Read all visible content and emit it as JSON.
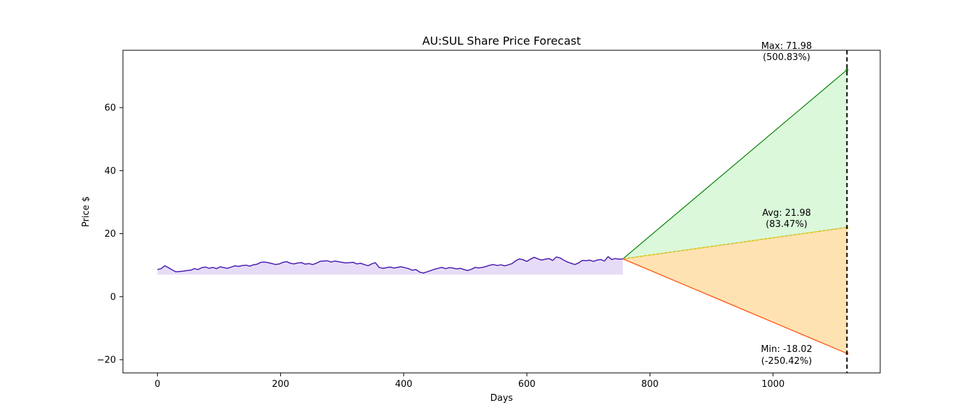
{
  "chart_data": {
    "type": "line",
    "title": "AU:SUL Share Price Forecast",
    "xlabel": "Days",
    "ylabel": "Price $",
    "xlim": [
      -56,
      1174
    ],
    "ylim": [
      -24.2,
      78.2
    ],
    "xticks": [
      0,
      200,
      400,
      600,
      800,
      1000
    ],
    "yticks": [
      -20,
      0,
      20,
      40,
      60
    ],
    "grid": false,
    "history": {
      "baseline": 7.0,
      "x": [
        0,
        6,
        12,
        18,
        24,
        30,
        36,
        42,
        48,
        54,
        60,
        66,
        72,
        78,
        84,
        90,
        96,
        102,
        108,
        114,
        120,
        126,
        132,
        138,
        144,
        150,
        156,
        162,
        168,
        174,
        180,
        186,
        192,
        198,
        204,
        210,
        216,
        222,
        228,
        234,
        240,
        246,
        252,
        258,
        264,
        270,
        276,
        282,
        288,
        294,
        300,
        306,
        312,
        318,
        324,
        330,
        336,
        342,
        348,
        354,
        360,
        366,
        372,
        378,
        384,
        390,
        396,
        402,
        408,
        414,
        420,
        426,
        432,
        438,
        444,
        450,
        456,
        462,
        468,
        474,
        480,
        486,
        492,
        498,
        504,
        510,
        516,
        522,
        528,
        534,
        540,
        546,
        552,
        558,
        564,
        570,
        576,
        582,
        588,
        594,
        600,
        606,
        612,
        618,
        624,
        630,
        636,
        642,
        648,
        654,
        660,
        666,
        672,
        678,
        684,
        690,
        696,
        702,
        708,
        714,
        720,
        726,
        732,
        738,
        744,
        750,
        756
      ],
      "y": [
        8.6,
        8.9,
        9.8,
        9.2,
        8.5,
        7.9,
        8.0,
        8.1,
        8.3,
        8.4,
        8.9,
        8.6,
        9.2,
        9.4,
        9.0,
        9.3,
        8.9,
        9.5,
        9.2,
        9.0,
        9.4,
        9.8,
        9.6,
        9.9,
        10.0,
        9.7,
        10.1,
        10.3,
        10.9,
        11.0,
        10.8,
        10.5,
        10.2,
        10.4,
        10.9,
        11.1,
        10.6,
        10.4,
        10.7,
        10.8,
        10.3,
        10.5,
        10.2,
        10.6,
        11.2,
        11.3,
        11.4,
        11.0,
        11.3,
        11.1,
        10.9,
        10.7,
        10.8,
        10.9,
        10.4,
        10.6,
        10.2,
        9.8,
        10.4,
        10.8,
        9.3,
        9.0,
        9.2,
        9.4,
        9.1,
        9.3,
        9.5,
        9.2,
        8.9,
        8.4,
        8.6,
        7.8,
        7.5,
        7.9,
        8.3,
        8.7,
        9.0,
        9.3,
        8.9,
        9.2,
        9.1,
        8.8,
        9.0,
        8.6,
        8.3,
        8.7,
        9.3,
        9.1,
        9.3,
        9.6,
        10.0,
        10.2,
        9.9,
        10.1,
        9.8,
        10.1,
        10.5,
        11.4,
        12.0,
        11.7,
        11.2,
        11.9,
        12.5,
        12.0,
        11.6,
        11.9,
        12.1,
        11.5,
        12.6,
        12.3,
        11.6,
        11.0,
        10.6,
        10.2,
        10.7,
        11.5,
        11.4,
        11.6,
        11.2,
        11.6,
        11.8,
        11.3,
        12.7,
        11.8,
        12.1,
        11.9,
        12.0
      ]
    },
    "forecast": {
      "start": [
        756,
        12.0
      ],
      "end_x": 1120,
      "max": 71.98,
      "avg": 21.98,
      "min": -18.02
    },
    "colors": {
      "history_line": "#4b1fb0",
      "history_fill": "#e6dcf7",
      "max_line": "#008000",
      "max_fill": "#dbf8db",
      "avg_line": "#d4c21a",
      "min_line": "#ff4500",
      "min_fill": "#ffe2b2",
      "vline": "#000000"
    },
    "annotations": {
      "max_line1": "Max: 71.98",
      "max_line2": "(500.83%)",
      "avg_line1": "Avg: 21.98",
      "avg_line2": "(83.47%)",
      "min_line1": "Min: -18.02",
      "min_line2": "(-250.42%)"
    }
  }
}
